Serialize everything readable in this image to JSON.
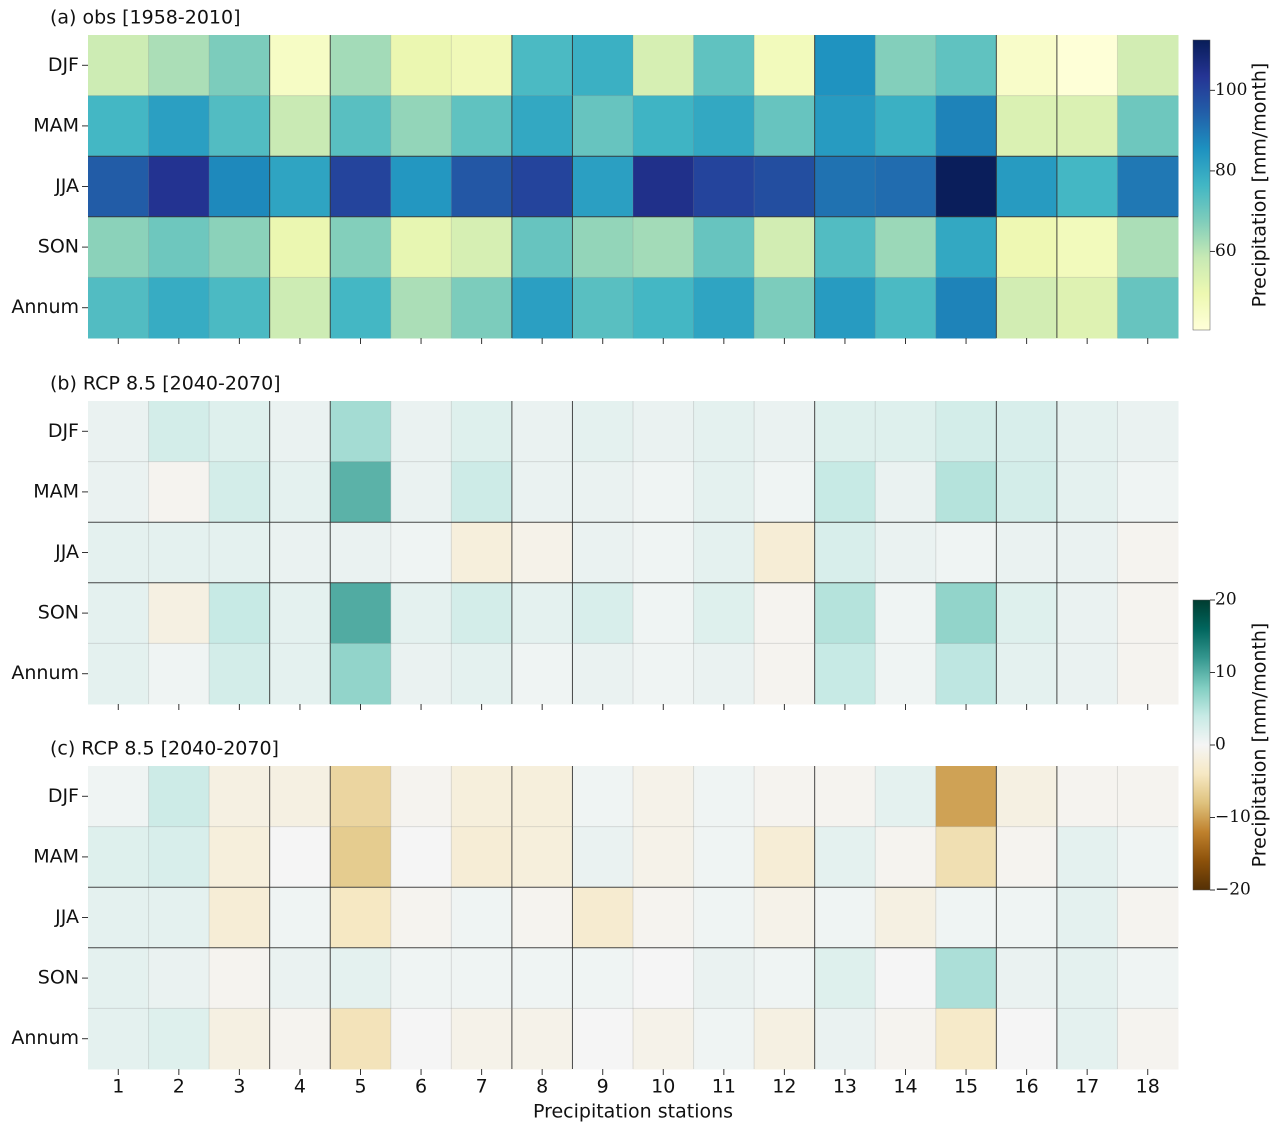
{
  "chart_data": [
    {
      "type": "heatmap",
      "title": "(a) obs [1958-2010]",
      "rows": [
        "DJF",
        "MAM",
        "JJA",
        "SON",
        "Annum"
      ],
      "values": [
        [
          57,
          62,
          68,
          45,
          63,
          50,
          48,
          75,
          78,
          55,
          72,
          47,
          85,
          67,
          72,
          44,
          41,
          56
        ],
        [
          76,
          82,
          74,
          58,
          73,
          65,
          72,
          80,
          71,
          77,
          80,
          71,
          83,
          78,
          88,
          54,
          54,
          70
        ],
        [
          95,
          104,
          87,
          81,
          100,
          84,
          96,
          100,
          82,
          105,
          100,
          98,
          91,
          92,
          112,
          83,
          76,
          90
        ],
        [
          66,
          70,
          66,
          50,
          67,
          51,
          55,
          71,
          65,
          63,
          71,
          56,
          74,
          64,
          80,
          49,
          47,
          62
        ],
        [
          74,
          79,
          75,
          57,
          76,
          62,
          68,
          82,
          73,
          76,
          81,
          68,
          83,
          75,
          88,
          56,
          53,
          71
        ]
      ],
      "zlim": [
        40.5,
        112.5
      ],
      "colors": [
        "#ffffd9",
        "#edf8b1",
        "#c7e9b4",
        "#7fcdbb",
        "#41b6c4",
        "#1d91c0",
        "#225ea8",
        "#253494",
        "#081d58"
      ],
      "colorbar": {
        "label": "Precipitation [mm/month]",
        "zticks": [
          60,
          80,
          100
        ]
      }
    },
    {
      "type": "heatmap",
      "title": "(b)  RCP 8.5 [2040-2070]",
      "rows": [
        "DJF",
        "MAM",
        "JJA",
        "SON",
        "Annum"
      ],
      "values": [
        [
          1,
          3,
          2,
          1,
          6,
          1,
          2,
          1,
          1.5,
          1,
          1.5,
          1,
          2,
          2,
          3,
          2.5,
          1.5,
          1
        ],
        [
          1,
          -0.5,
          3,
          1.5,
          10,
          1,
          3.5,
          1,
          1,
          0.5,
          1.5,
          0.5,
          4,
          1,
          5,
          3,
          1.5,
          0.5
        ],
        [
          1.5,
          1.5,
          1.5,
          1,
          1,
          0.5,
          -2,
          -1,
          1,
          0.5,
          1.5,
          -2.5,
          2.5,
          1,
          0.5,
          1,
          1,
          -0.5
        ],
        [
          1.5,
          -1.5,
          4,
          1.5,
          10.5,
          1.5,
          3,
          1.5,
          2.5,
          0.5,
          2,
          -0.5,
          5,
          0.5,
          7,
          2,
          1,
          -0.5
        ],
        [
          1.5,
          0.5,
          3,
          1.5,
          7,
          1,
          1.5,
          0.5,
          1,
          0.5,
          1,
          -0.5,
          4,
          0.5,
          4.5,
          1.5,
          1,
          -0.5
        ]
      ],
      "zlim": [
        -20,
        20
      ],
      "colors": [
        "#543005",
        "#8c510a",
        "#bf812d",
        "#dfc27d",
        "#f6e8c3",
        "#f5f5f5",
        "#c7eae5",
        "#80cdc1",
        "#35978f",
        "#01665e",
        "#003c30"
      ],
      "colorbar": {
        "label": "Precipitation [mm/month]",
        "zticks": [
          {
            "value": -20,
            "label": "−20"
          },
          {
            "value": -10,
            "label": "−10"
          },
          0,
          10,
          20
        ]
      }
    },
    {
      "type": "heatmap",
      "title": "(c)  RCP 8.5 [2040-2070]",
      "rows": [
        "DJF",
        "MAM",
        "JJA",
        "SON",
        "Annum"
      ],
      "values": [
        [
          0.5,
          3.5,
          -1.5,
          -1.5,
          -6,
          -0.5,
          -2,
          -2,
          0.5,
          -1,
          0.5,
          -0.5,
          -0.5,
          1.5,
          -10,
          -1.5,
          -0.5,
          -0.5
        ],
        [
          2,
          2.5,
          -2,
          0,
          -7,
          0,
          -2.5,
          -2,
          1,
          -1,
          0.5,
          -2.5,
          1.5,
          -0.5,
          -5,
          -0.5,
          1.5,
          0.5
        ],
        [
          1.5,
          1.5,
          -2.5,
          0.5,
          -4,
          -0.5,
          0.5,
          -0.5,
          -3,
          -0.5,
          0.5,
          -1,
          0.5,
          -1.5,
          0.5,
          0.5,
          1.5,
          -0.5
        ],
        [
          1.5,
          1,
          -0.5,
          1,
          1.5,
          0.5,
          0.5,
          0.5,
          0.5,
          0,
          1,
          0.5,
          2,
          0,
          5.5,
          1,
          1.5,
          0.5
        ],
        [
          1.5,
          2,
          -1.5,
          -0.5,
          -4.5,
          0,
          -1,
          -1,
          0,
          -1,
          0.5,
          -1.5,
          1,
          -0.5,
          -3.5,
          0,
          1.5,
          -0.5
        ]
      ],
      "zlim": [
        -20,
        20
      ],
      "colors": [
        "#543005",
        "#8c510a",
        "#bf812d",
        "#dfc27d",
        "#f6e8c3",
        "#f5f5f5",
        "#c7eae5",
        "#80cdc1",
        "#35978f",
        "#01665e",
        "#003c30"
      ],
      "categories": [
        "1",
        "2",
        "3",
        "4",
        "5",
        "6",
        "7",
        "8",
        "9",
        "10",
        "11",
        "12",
        "13",
        "14",
        "15",
        "16",
        "17",
        "18"
      ],
      "xlabel": "Precipitation stations"
    }
  ]
}
